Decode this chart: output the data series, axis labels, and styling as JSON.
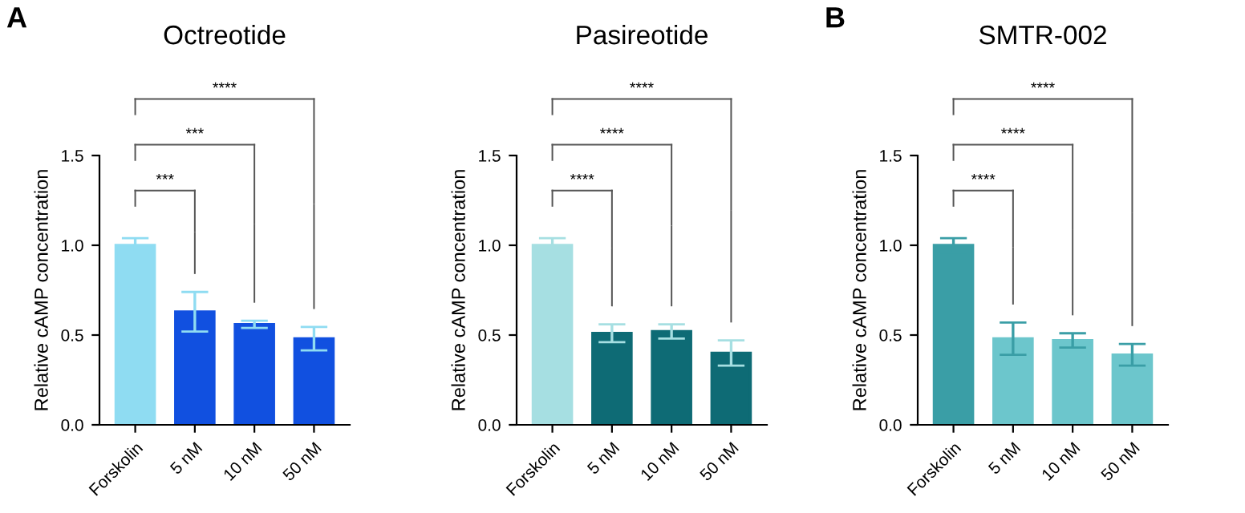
{
  "chart_data": [
    {
      "type": "bar",
      "title": "Octreotide",
      "ylabel": "Relative cAMP concentration",
      "categories": [
        "Forskolin",
        "5 nM",
        "10 nM",
        "50 nM"
      ],
      "values": [
        1.0,
        0.63,
        0.56,
        0.48
      ],
      "errors": [
        0.04,
        0.11,
        0.02,
        0.065
      ],
      "colors": [
        "#8fdcf2",
        "#1150e0",
        "#1150e0",
        "#1150e0"
      ],
      "ylim": [
        0,
        1.5
      ],
      "yticks": [
        {
          "value": 0,
          "label": "0.0"
        },
        {
          "value": 0.5,
          "label": "0.5"
        },
        {
          "value": 1.0,
          "label": "1.0"
        },
        {
          "value": 1.5,
          "label": "1.5"
        }
      ],
      "annotations": [
        "A",
        "***",
        "***",
        "****"
      ]
    },
    {
      "type": "bar",
      "title": "Pasireotide",
      "ylabel": "Relative cAMP concentration",
      "categories": [
        "Forskolin",
        "5 nM",
        "10 nM",
        "50 nM"
      ],
      "values": [
        1.0,
        0.51,
        0.52,
        0.4
      ],
      "errors": [
        0.04,
        0.05,
        0.04,
        0.07
      ],
      "colors": [
        "#a6dfe2",
        "#0e6b75",
        "#0e6b75",
        "#0e6b75"
      ],
      "ylim": [
        0,
        1.5
      ],
      "yticks": [
        {
          "value": 0,
          "label": "0.0"
        },
        {
          "value": 0.5,
          "label": "0.5"
        },
        {
          "value": 1.0,
          "label": "1.0"
        },
        {
          "value": 1.5,
          "label": "1.5"
        }
      ],
      "annotations": [
        "****",
        "****",
        "****"
      ]
    },
    {
      "type": "bar",
      "title": "SMTR-002",
      "ylabel": "Relative cAMP concentration",
      "categories": [
        "Forskolin",
        "5 nM",
        "10 nM",
        "50 nM"
      ],
      "values": [
        1.0,
        0.48,
        0.47,
        0.39
      ],
      "errors": [
        0.04,
        0.09,
        0.04,
        0.06
      ],
      "colors": [
        "#3a9ea6",
        "#6cc6cc",
        "#6cc6cc",
        "#6cc6cc"
      ],
      "ylim": [
        0,
        1.5
      ],
      "yticks": [
        {
          "value": 0,
          "label": "0.0"
        },
        {
          "value": 0.5,
          "label": "0.5"
        },
        {
          "value": 1.0,
          "label": "1.0"
        },
        {
          "value": 1.5,
          "label": "1.5"
        }
      ],
      "annotations": [
        "B",
        "****",
        "****",
        "****"
      ]
    }
  ]
}
